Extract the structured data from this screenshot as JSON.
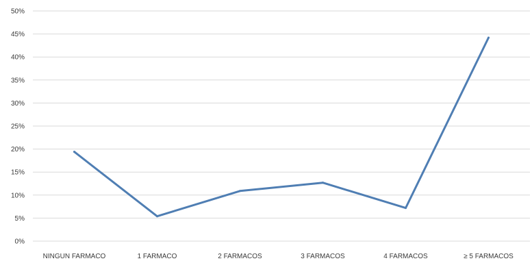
{
  "chart_data": {
    "type": "line",
    "title": "",
    "xlabel": "",
    "ylabel": "",
    "categories": [
      "NINGUN FARMACO",
      "1 FARMACO",
      "2 FARMACOS",
      "3 FARMACOS",
      "4 FARMACOS",
      "≥ 5 FARMACOS"
    ],
    "series": [
      {
        "values": [
          19.4,
          5.4,
          10.9,
          12.7,
          7.2,
          44.2
        ]
      }
    ],
    "ylim": [
      0,
      50
    ],
    "y_tick_step": 5,
    "y_tick_labels": [
      "0%",
      "5%",
      "10%",
      "15%",
      "20%",
      "25%",
      "30%",
      "35%",
      "40%",
      "45%",
      "50%"
    ],
    "grid": true,
    "legend": "none",
    "colors": {
      "series": "#4f7eb3",
      "grid": "#d9d9d9",
      "text": "#3a3a3a"
    }
  }
}
